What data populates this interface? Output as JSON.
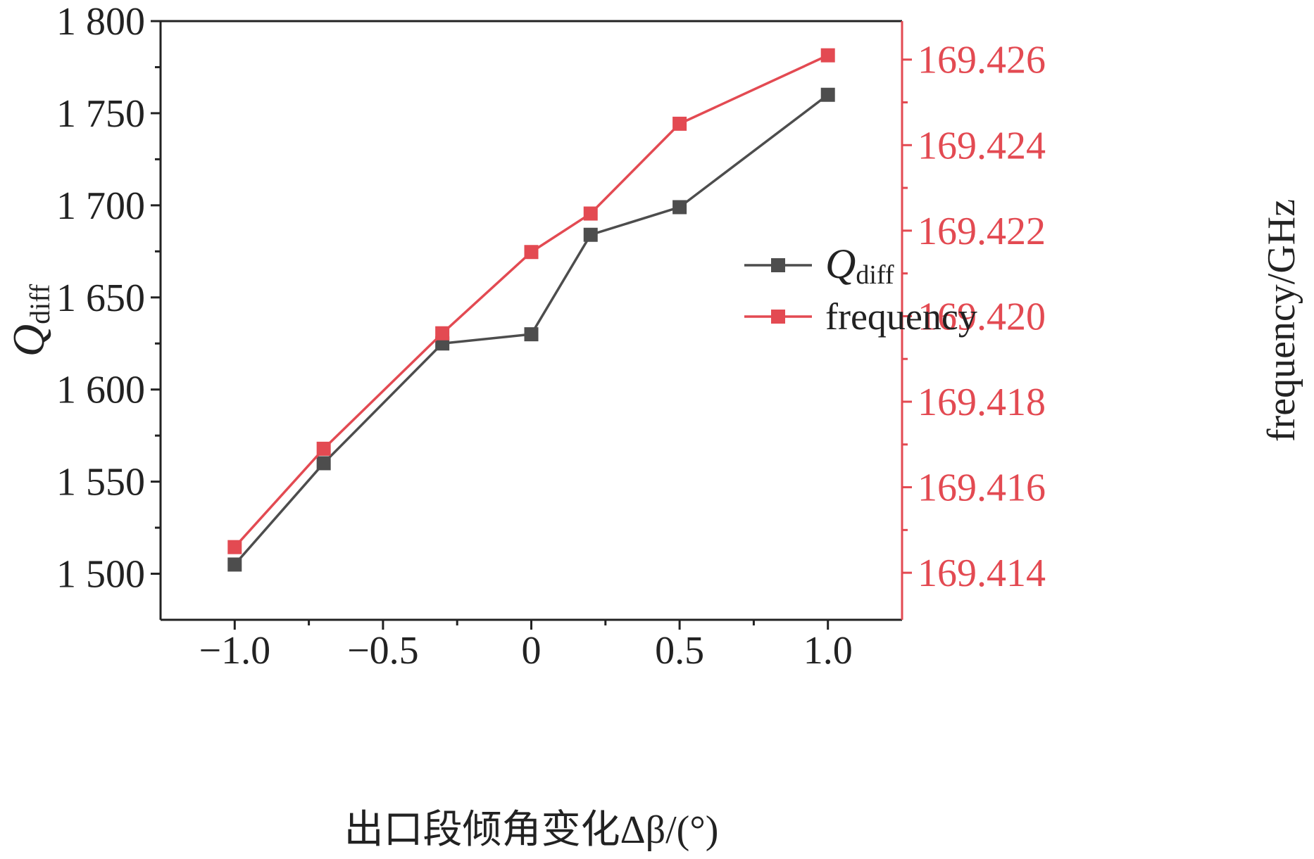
{
  "chart_data": {
    "type": "line",
    "xlabel": "出口段倾角变化Δβ/(°)",
    "ylabel": "Qdiff",
    "ylabel_main": "Q",
    "ylabel_sub": "diff",
    "y2label": "frequency/GHz",
    "xlim": [
      -1.25,
      1.25
    ],
    "ylim": [
      1475,
      1800
    ],
    "y2lim": [
      169.4129,
      169.4269
    ],
    "x_ticks": [
      -1.0,
      -0.5,
      0,
      0.5,
      1.0
    ],
    "x_tick_labels": [
      "−1.0",
      "−0.5",
      "0",
      "0.5",
      "1.0"
    ],
    "y_ticks": [
      1500,
      1550,
      1600,
      1650,
      1700,
      1750,
      1800
    ],
    "y_tick_labels": [
      "1 500",
      "1 550",
      "1 600",
      "1 650",
      "1 700",
      "1 750",
      "1 800"
    ],
    "y2_ticks": [
      169.414,
      169.416,
      169.418,
      169.42,
      169.422,
      169.424,
      169.426
    ],
    "y2_tick_labels": [
      "169.414",
      "169.416",
      "169.418",
      "169.420",
      "169.422",
      "169.424",
      "169.426"
    ],
    "legend_position": "center-right",
    "grid": false,
    "series": [
      {
        "name": "Qdiff",
        "legend_main": "Q",
        "legend_sub": "diff",
        "axis": "left",
        "color": "#4d4d4d",
        "marker": "square",
        "x": [
          -1.0,
          -0.7,
          -0.3,
          0,
          0.2,
          0.5,
          1.0
        ],
        "y": [
          1505,
          1560,
          1625,
          1630,
          1684,
          1699,
          1760
        ]
      },
      {
        "name": "frequency",
        "legend_main": "frequency",
        "legend_sub": "",
        "axis": "right",
        "color": "#e34a52",
        "marker": "square",
        "x": [
          -1.0,
          -0.7,
          -0.3,
          0,
          0.2,
          0.5,
          1.0
        ],
        "y": [
          169.4146,
          169.4169,
          169.4196,
          169.4215,
          169.4224,
          169.4245,
          169.4261
        ]
      }
    ],
    "colors": {
      "axis_left": "#222222",
      "axis_right": "#e34a52"
    }
  }
}
